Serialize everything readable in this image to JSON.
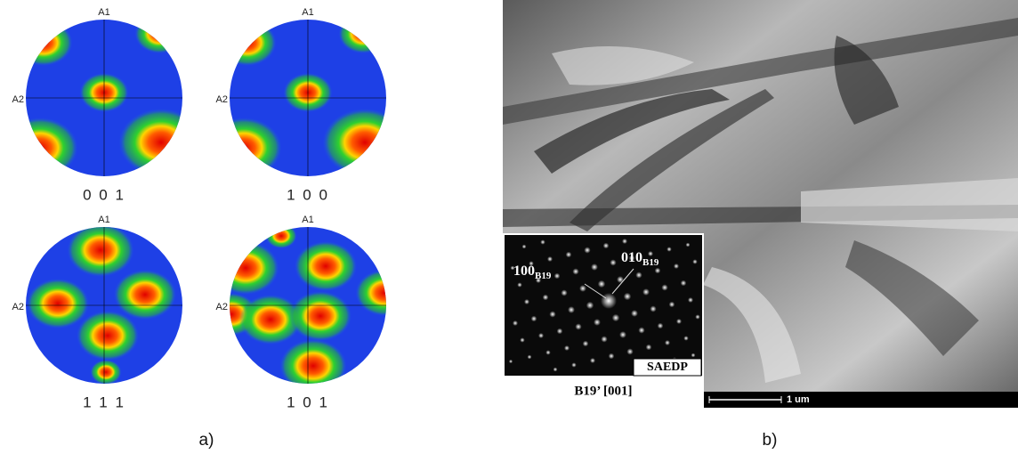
{
  "panel_a": {
    "caption": "a)",
    "pole_figures": [
      {
        "label": "0 0 1",
        "top_axis": "A1",
        "left_axis": "A2"
      },
      {
        "label": "1 0 0",
        "top_axis": "A1",
        "left_axis": "A2"
      },
      {
        "label": "1 1 1",
        "top_axis": "A1",
        "left_axis": "A2"
      },
      {
        "label": "1 0 1",
        "top_axis": "A1",
        "left_axis": "A2"
      }
    ]
  },
  "panel_b": {
    "caption": "b)",
    "scale_bar": "1 um",
    "inset": {
      "badge": "SAEDP",
      "title": "B19’ [001]",
      "spot_labels": [
        {
          "main": "100",
          "sub": "B19"
        },
        {
          "main": "010",
          "sub": "B19"
        }
      ]
    }
  }
}
